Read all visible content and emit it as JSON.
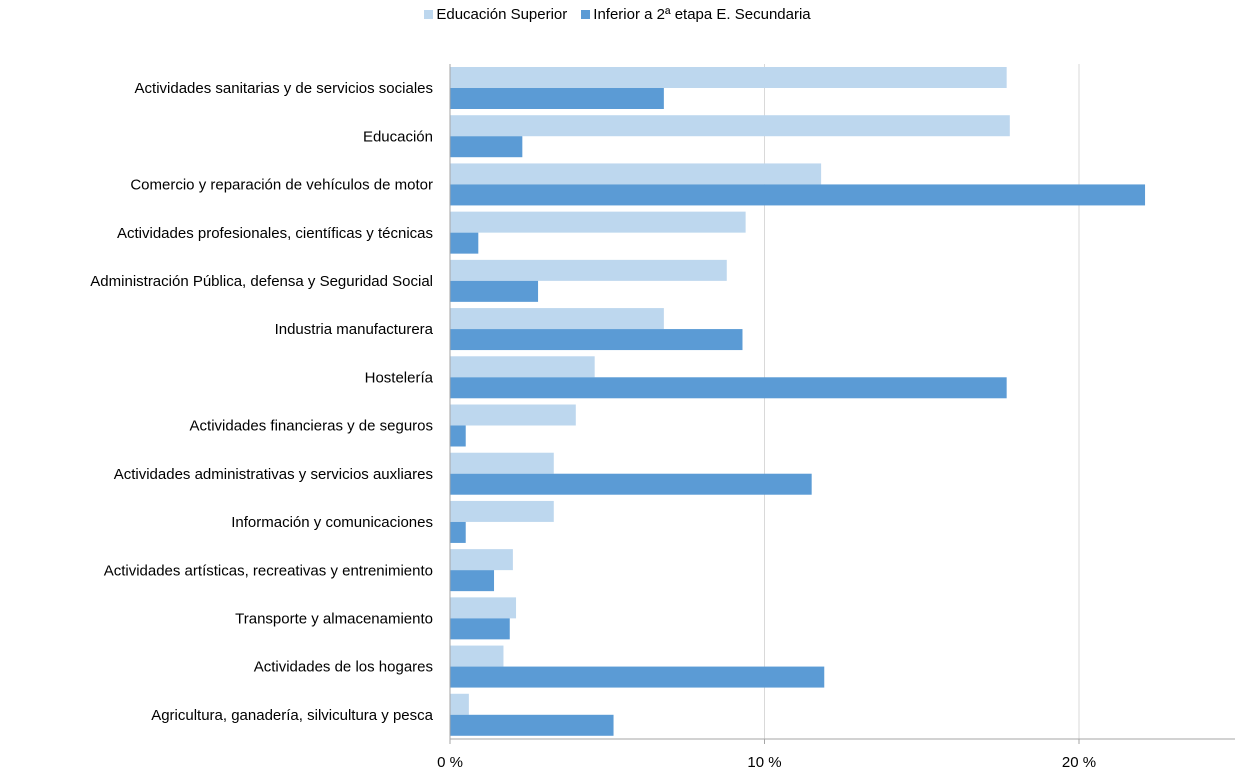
{
  "chart_data": {
    "type": "bar",
    "orientation": "horizontal",
    "categories": [
      "Actividades sanitarias y de servicios sociales",
      "Educación",
      "Comercio y reparación de vehículos de motor",
      "Actividades profesionales, científicas y técnicas",
      "Administración Pública, defensa y Seguridad Social",
      "Industria manufacturera",
      "Hostelería",
      "Actividades financieras y de seguros",
      "Actividades administrativas y servicios auxliares",
      "Información y comunicaciones",
      "Actividades artísticas, recreativas y entrenimiento",
      "Transporte y almacenamiento",
      "Actividades de los hogares",
      "Agricultura, ganadería, silvicultura y pesca"
    ],
    "series": [
      {
        "name": "Educación Superior",
        "color": "#bdd7ee",
        "values": [
          17.7,
          17.8,
          11.8,
          9.4,
          8.8,
          6.8,
          4.6,
          4.0,
          3.3,
          3.3,
          2.0,
          2.1,
          1.7,
          0.6
        ]
      },
      {
        "name": "Inferior a 2ª etapa E. Secundaria",
        "color": "#5b9bd5",
        "values": [
          6.8,
          2.3,
          22.1,
          0.9,
          2.8,
          9.3,
          17.7,
          0.5,
          11.5,
          0.5,
          1.4,
          1.9,
          11.9,
          5.2
        ]
      }
    ],
    "xlim": [
      0,
      25
    ],
    "xticks": [
      0,
      10,
      20
    ],
    "xtick_labels": [
      "0 %",
      "10 %",
      "20 %"
    ],
    "grid": true,
    "legend_position": "top-center"
  }
}
